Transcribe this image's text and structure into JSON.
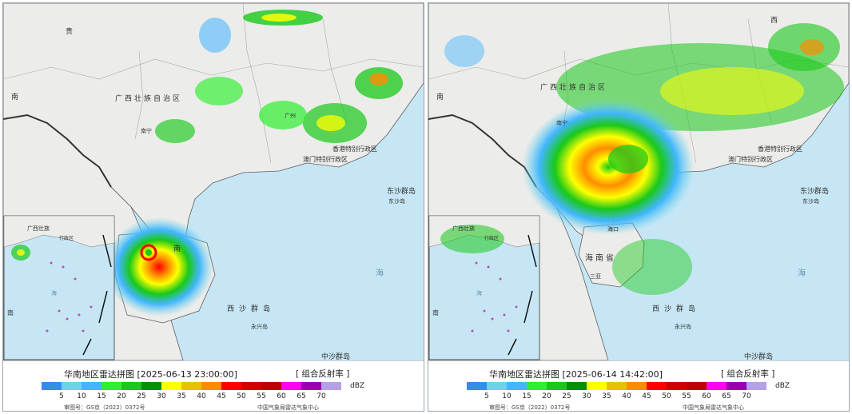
{
  "panels": [
    {
      "title": "华南地区雷达拼图 [2025-06-13 23:00:00]",
      "product": "[ 组合反射率 ]",
      "review_no": "审图号：GS京（2022）0372号",
      "producer": "中国气象局雷达气象中心",
      "labels": {
        "guangxi": "广西壮族自治区",
        "hk": "香港特别行政区",
        "macau": "澳门特别行政区",
        "dongsha": "东沙群岛",
        "dongsha_dao": "东沙岛",
        "xisha": "西沙群岛",
        "yongxing": "永兴岛",
        "zhongsha": "中沙群岛",
        "nan1": "南",
        "nan2": "南",
        "hai": "海",
        "gui": "贵",
        "inset_guangxi": "广西壮族",
        "inset_nan": "南",
        "inset_hai": "海",
        "inset_zone": "行政区",
        "city_nanning": "南宁",
        "city_guangzhou": "广州"
      }
    },
    {
      "title": "华南地区雷达拼图 [2025-06-14 14:42:00]",
      "product": "[ 组合反射率 ]",
      "review_no": "审图号：GS京（2022）0372号",
      "producer": "中国气象局雷达气象中心",
      "labels": {
        "guangxi": "广西壮族自治区",
        "hk": "香港特别行政区",
        "macau": "澳门特别行政区",
        "dongsha": "东沙群岛",
        "dongsha_dao": "东沙岛",
        "xisha": "西沙群岛",
        "yongxing": "永兴岛",
        "zhongsha": "中沙群岛",
        "hainan": "海南省",
        "nan1": "南",
        "hai": "海",
        "west": "西",
        "inset_guangxi": "广西壮族",
        "inset_nan": "南",
        "inset_hai": "海",
        "inset_zone": "行政区",
        "city_haikou": "海口",
        "city_sanya": "三亚",
        "city_nanning": "南宁"
      }
    }
  ],
  "legend": {
    "unit": "dBZ",
    "ticks": [
      "5",
      "10",
      "15",
      "20",
      "25",
      "30",
      "35",
      "40",
      "45",
      "50",
      "55",
      "60",
      "65",
      "70"
    ],
    "colors": [
      "#3a8be3",
      "#6ad5e8",
      "#42b6ff",
      "#2ef02e",
      "#19c919",
      "#0c8c0c",
      "#ffff00",
      "#e8c200",
      "#ff8c00",
      "#ff0000",
      "#d40000",
      "#c00000",
      "#ff00f0",
      "#9600b4",
      "#b6a0e6"
    ]
  },
  "colors": {
    "land": "#ececea",
    "sea": "#c6e6f5",
    "border": "#5f5f5f"
  }
}
